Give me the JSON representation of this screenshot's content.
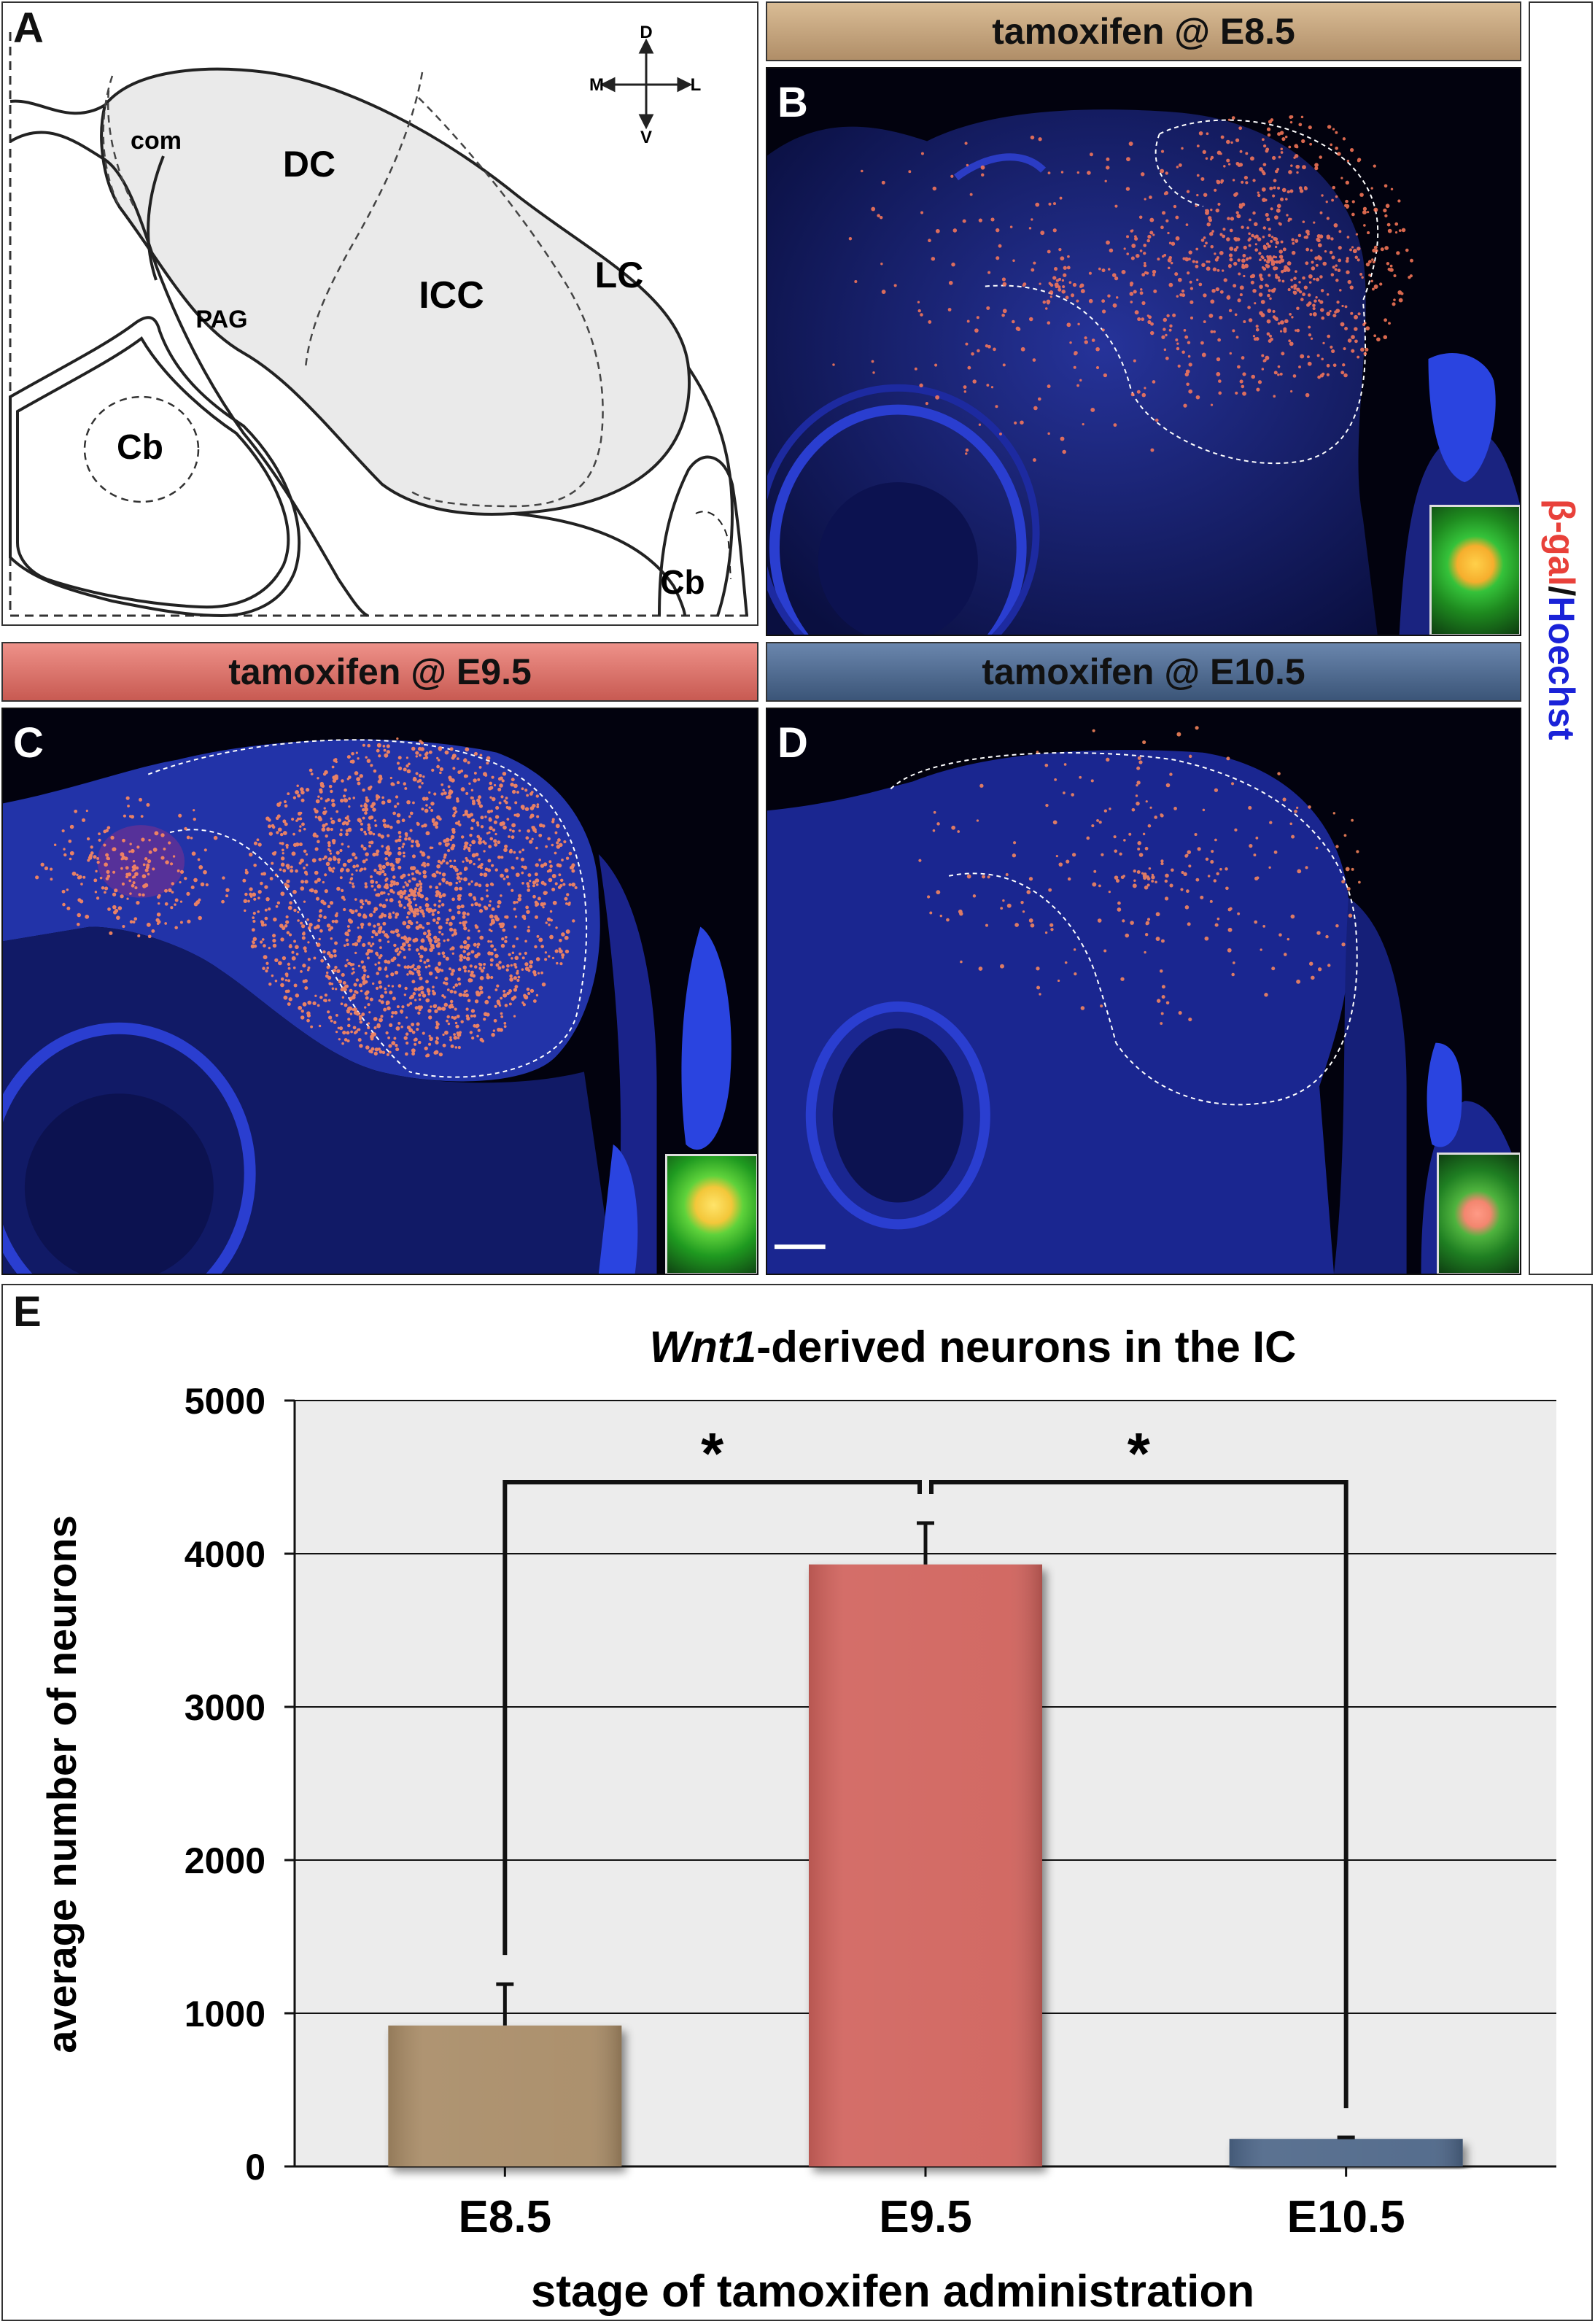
{
  "panels": {
    "a": {
      "letter": "A",
      "regions": {
        "com": "com",
        "dc": "DC",
        "icc": "ICC",
        "lc": "LC",
        "pag": "PAG",
        "cb_left": "Cb",
        "cb_right": "Cb"
      },
      "compass": {
        "d": "D",
        "v": "V",
        "m": "M",
        "l": "L"
      }
    },
    "b": {
      "letter": "B",
      "banner": "tamoxifen @ E8.5",
      "banner_color": "#c9a780"
    },
    "c": {
      "letter": "C",
      "banner": "tamoxifen @ E9.5",
      "banner_color": "#e07a72"
    },
    "d": {
      "letter": "D",
      "banner": "tamoxifen @ E10.5",
      "banner_color": "#4f6a90"
    },
    "e": {
      "letter": "E"
    }
  },
  "stain_label": {
    "part1": "β-gal",
    "sep": "/",
    "part2": "Hoechst",
    "color1": "#e8413a",
    "color2": "#1a22d8"
  },
  "chart_data": {
    "type": "bar",
    "title_italic": "Wnt1",
    "title_rest": "-derived neurons in the IC",
    "categories": [
      "E8.5",
      "E9.5",
      "E10.5"
    ],
    "values": [
      920,
      3930,
      180
    ],
    "errors": [
      270,
      270,
      10
    ],
    "colors": [
      "#a88b66",
      "#d0625c",
      "#4d6688"
    ],
    "xlabel": "stage of tamoxifen administration",
    "ylabel": "average number of neurons",
    "ylim": [
      0,
      5000
    ],
    "yticks": [
      "0",
      "1000",
      "2000",
      "3000",
      "4000",
      "5000"
    ],
    "grid": true,
    "significance": [
      "*",
      "*"
    ]
  }
}
